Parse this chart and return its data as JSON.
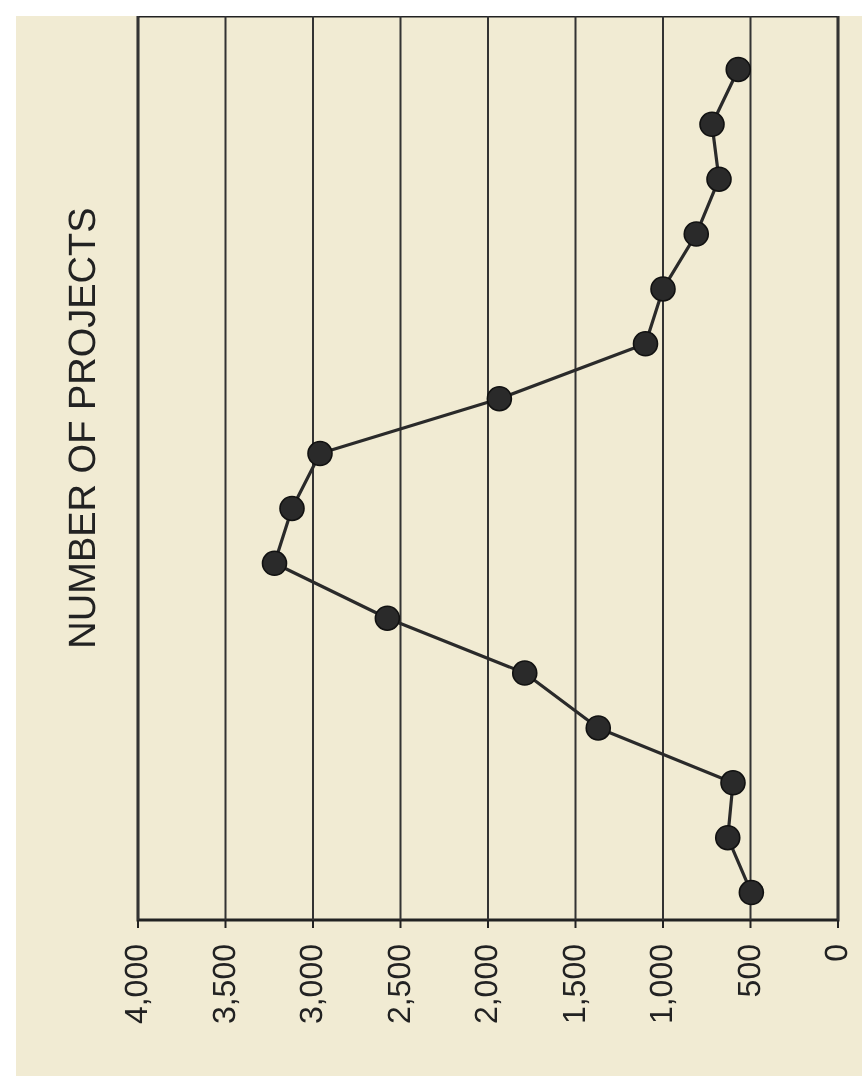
{
  "chart_data": {
    "type": "line",
    "title": "NUMBER OF PROJECTS",
    "orientation": "horizontal",
    "categories": [
      null,
      null,
      null,
      null,
      null,
      null,
      null,
      null,
      null,
      null,
      null,
      null,
      null,
      null,
      null,
      null
    ],
    "series": [
      {
        "color": "#2a2a2a",
        "values": [
          570,
          720,
          680,
          810,
          1000,
          1100,
          1935,
          2960,
          3120,
          3220,
          2575,
          1790,
          1370,
          600,
          630,
          495
        ]
      }
    ],
    "xlim": [
      4000,
      0
    ],
    "xticks": [
      {
        "value": 4000,
        "label": "4,000"
      },
      {
        "value": 3500,
        "label": "3,500"
      },
      {
        "value": 3000,
        "label": "3,000"
      },
      {
        "value": 2500,
        "label": "2,500"
      },
      {
        "value": 2000,
        "label": "2,000"
      },
      {
        "value": 1500,
        "label": "1,500"
      },
      {
        "value": 1000,
        "label": "1,000"
      },
      {
        "value": 500,
        "label": "500"
      },
      {
        "value": 0,
        "label": "0"
      }
    ],
    "grid": "x",
    "marker": "circle"
  }
}
